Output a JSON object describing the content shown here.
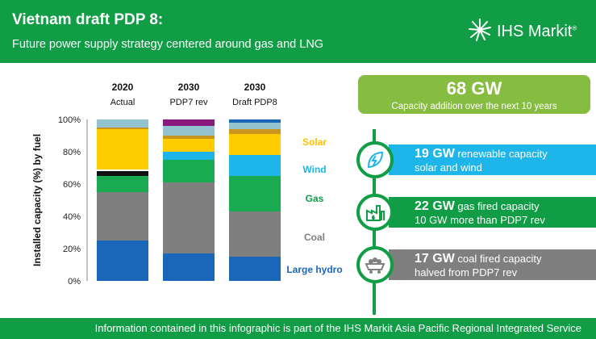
{
  "header": {
    "title": "Vietnam draft PDP 8:",
    "subtitle": "Future power supply strategy centered around gas and LNG",
    "logo_text": "IHS Markit"
  },
  "colors": {
    "brand_green": "#119c46",
    "light_green": "#86bc3f",
    "renewable_blue": "#1eb5ea",
    "coal_gray": "#7f7f7f"
  },
  "chart_data": {
    "type": "bar",
    "stacked": true,
    "categories": [
      "2020\nActual",
      "2030\nPDP7 rev",
      "2030\nDraft PDP8"
    ],
    "category_years": [
      "2020",
      "2030",
      "2030"
    ],
    "category_subs": [
      "Actual",
      "PDP7 rev",
      "Draft PDP8"
    ],
    "ylabel": "Installed capacity (%) by fuel",
    "yticks": [
      "0%",
      "20%",
      "40%",
      "60%",
      "80%",
      "100%"
    ],
    "ylim": [
      0,
      100
    ],
    "series": [
      {
        "name": "Large hydro",
        "color": "#1a66b8",
        "values": [
          25,
          17,
          15
        ]
      },
      {
        "name": "Coal",
        "color": "#7f7f7f",
        "values": [
          30,
          44,
          28
        ]
      },
      {
        "name": "Gas",
        "color": "#1aaa52",
        "values": [
          10,
          14,
          22
        ]
      },
      {
        "name": "",
        "color": "#111111",
        "values": [
          3,
          0,
          0
        ]
      },
      {
        "name": "",
        "color": "#ffffff",
        "values": [
          1,
          0,
          0
        ]
      },
      {
        "name": "Wind",
        "color": "#1eb5ea",
        "values": [
          0,
          5,
          13
        ]
      },
      {
        "name": "Solar",
        "color": "#ffcc00",
        "values": [
          25,
          8,
          13
        ]
      },
      {
        "name": "",
        "color": "#c8961e",
        "values": [
          1,
          2,
          3
        ]
      },
      {
        "name": "",
        "color": "#92c3cf",
        "values": [
          5,
          6,
          4
        ]
      },
      {
        "name": "",
        "color": "#8b1a7f",
        "values": [
          0,
          4,
          0
        ]
      },
      {
        "name": "",
        "color": "#1a66b8",
        "values": [
          0,
          0,
          2
        ]
      }
    ]
  },
  "segment_labels": [
    {
      "name": "Solar",
      "color": "#ffc000",
      "level": 86
    },
    {
      "name": "Wind",
      "color": "#1eb5ea",
      "level": 69
    },
    {
      "name": "Gas",
      "color": "#119c46",
      "level": 51
    },
    {
      "name": "Coal",
      "color": "#7f7f7f",
      "level": 27
    },
    {
      "name": "Large hydro",
      "color": "#1a66b8",
      "level": 7
    }
  ],
  "capacity": {
    "value": "68 GW",
    "description": "Capacity addition over the next 10 years"
  },
  "stats": [
    {
      "icon": "renewable-leaf-icon",
      "value": "19 GW",
      "label": "renewable capacity",
      "detail": "solar and wind",
      "color": "#1eb5ea"
    },
    {
      "icon": "gas-plant-icon",
      "value": "22 GW",
      "label": "gas fired capacity",
      "detail": "10 GW more than PDP7 rev",
      "color": "#119c46"
    },
    {
      "icon": "coal-cart-icon",
      "value": "17 GW",
      "label": "coal fired capacity",
      "detail": "halved from PDP7 rev",
      "color": "#7f7f7f"
    }
  ],
  "footer": {
    "text": "Information contained in this infographic is part of the IHS Markit Asia Pacific Regional Integrated Service"
  }
}
